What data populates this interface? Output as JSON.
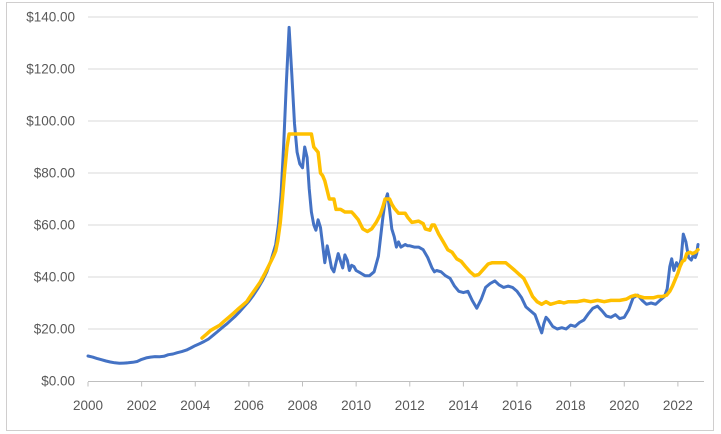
{
  "chart_data": {
    "type": "line",
    "title": "",
    "xlabel": "",
    "ylabel": "",
    "x_range": [
      2000,
      2022.75
    ],
    "ylim": [
      0,
      140
    ],
    "y_tick_step": 20,
    "x_tick_interval": 2,
    "grid": "horizontal-only",
    "legend_position": "none",
    "y_tick_labels": [
      "$0.00",
      "$20.00",
      "$40.00",
      "$60.00",
      "$80.00",
      "$100.00",
      "$120.00",
      "$140.00"
    ],
    "x_tick_labels": [
      "2000",
      "2002",
      "2004",
      "2006",
      "2008",
      "2010",
      "2012",
      "2014",
      "2016",
      "2018",
      "2020",
      "2022"
    ],
    "x_tick_years": [
      2000,
      2002,
      2004,
      2006,
      2008,
      2010,
      2012,
      2014,
      2016,
      2018,
      2020,
      2022
    ],
    "colors": {
      "series_blue": "#4472C4",
      "series_yellow": "#FFC000",
      "gridline": "#D9D9D9",
      "axis_line": "#BFBFBF",
      "tick": "#BFBFBF",
      "label_text": "#595959",
      "chart_border": "#D0CECE",
      "background": "#FFFFFF"
    },
    "series": [
      {
        "name": "blue-line-series",
        "color_key": "series_blue",
        "stroke_width": 3,
        "points": [
          [
            2000.0,
            9.6
          ],
          [
            2000.17,
            9.2
          ],
          [
            2000.33,
            8.7
          ],
          [
            2000.5,
            8.2
          ],
          [
            2000.67,
            7.7
          ],
          [
            2000.83,
            7.3
          ],
          [
            2001.0,
            7.0
          ],
          [
            2001.17,
            6.8
          ],
          [
            2001.33,
            6.9
          ],
          [
            2001.5,
            7.0
          ],
          [
            2001.67,
            7.2
          ],
          [
            2001.83,
            7.5
          ],
          [
            2002.0,
            8.3
          ],
          [
            2002.17,
            8.9
          ],
          [
            2002.33,
            9.2
          ],
          [
            2002.5,
            9.4
          ],
          [
            2002.67,
            9.3
          ],
          [
            2002.83,
            9.5
          ],
          [
            2003.0,
            10.1
          ],
          [
            2003.17,
            10.4
          ],
          [
            2003.33,
            10.9
          ],
          [
            2003.5,
            11.3
          ],
          [
            2003.67,
            11.9
          ],
          [
            2003.83,
            12.7
          ],
          [
            2004.0,
            13.6
          ],
          [
            2004.17,
            14.4
          ],
          [
            2004.33,
            15.2
          ],
          [
            2004.5,
            16.2
          ],
          [
            2004.67,
            17.6
          ],
          [
            2004.83,
            19.0
          ],
          [
            2005.0,
            20.5
          ],
          [
            2005.17,
            21.9
          ],
          [
            2005.33,
            23.4
          ],
          [
            2005.5,
            25.0
          ],
          [
            2005.67,
            26.8
          ],
          [
            2005.83,
            28.7
          ],
          [
            2006.0,
            30.7
          ],
          [
            2006.17,
            33.0
          ],
          [
            2006.33,
            35.5
          ],
          [
            2006.5,
            38.5
          ],
          [
            2006.67,
            42.0
          ],
          [
            2006.83,
            46.5
          ],
          [
            2007.0,
            52.5
          ],
          [
            2007.1,
            60.0
          ],
          [
            2007.2,
            72.0
          ],
          [
            2007.3,
            91.0
          ],
          [
            2007.4,
            115.0
          ],
          [
            2007.5,
            136.0
          ],
          [
            2007.6,
            118.0
          ],
          [
            2007.7,
            99.0
          ],
          [
            2007.8,
            88.0
          ],
          [
            2007.9,
            83.5
          ],
          [
            2008.0,
            82.0
          ],
          [
            2008.08,
            90.0
          ],
          [
            2008.17,
            86.0
          ],
          [
            2008.25,
            74.0
          ],
          [
            2008.33,
            65.0
          ],
          [
            2008.42,
            60.0
          ],
          [
            2008.5,
            58.0
          ],
          [
            2008.58,
            62.0
          ],
          [
            2008.67,
            59.0
          ],
          [
            2008.75,
            52.5
          ],
          [
            2008.83,
            45.5
          ],
          [
            2008.92,
            52.0
          ],
          [
            2009.0,
            48.0
          ],
          [
            2009.08,
            43.5
          ],
          [
            2009.17,
            42.0
          ],
          [
            2009.25,
            45.5
          ],
          [
            2009.33,
            49.0
          ],
          [
            2009.42,
            46.0
          ],
          [
            2009.5,
            43.5
          ],
          [
            2009.58,
            48.5
          ],
          [
            2009.67,
            46.5
          ],
          [
            2009.75,
            42.5
          ],
          [
            2009.83,
            44.5
          ],
          [
            2009.92,
            44.0
          ],
          [
            2010.0,
            42.5
          ],
          [
            2010.17,
            41.5
          ],
          [
            2010.33,
            40.5
          ],
          [
            2010.5,
            40.5
          ],
          [
            2010.67,
            42.0
          ],
          [
            2010.83,
            48.0
          ],
          [
            2010.92,
            56.0
          ],
          [
            2011.0,
            63.0
          ],
          [
            2011.08,
            69.0
          ],
          [
            2011.17,
            72.0
          ],
          [
            2011.25,
            66.0
          ],
          [
            2011.33,
            58.5
          ],
          [
            2011.42,
            55.5
          ],
          [
            2011.5,
            51.5
          ],
          [
            2011.58,
            53.5
          ],
          [
            2011.67,
            51.5
          ],
          [
            2011.75,
            52.0
          ],
          [
            2011.83,
            52.5
          ],
          [
            2011.92,
            52.0
          ],
          [
            2012.0,
            52.0
          ],
          [
            2012.17,
            51.5
          ],
          [
            2012.33,
            51.5
          ],
          [
            2012.5,
            50.5
          ],
          [
            2012.67,
            47.5
          ],
          [
            2012.83,
            43.5
          ],
          [
            2012.92,
            42.0
          ],
          [
            2013.0,
            42.5
          ],
          [
            2013.17,
            42.0
          ],
          [
            2013.33,
            40.5
          ],
          [
            2013.5,
            39.5
          ],
          [
            2013.67,
            36.5
          ],
          [
            2013.83,
            34.5
          ],
          [
            2014.0,
            34.0
          ],
          [
            2014.17,
            34.5
          ],
          [
            2014.33,
            31.0
          ],
          [
            2014.5,
            28.0
          ],
          [
            2014.67,
            31.5
          ],
          [
            2014.83,
            36.0
          ],
          [
            2015.0,
            37.5
          ],
          [
            2015.17,
            38.5
          ],
          [
            2015.33,
            37.0
          ],
          [
            2015.5,
            36.0
          ],
          [
            2015.67,
            36.5
          ],
          [
            2015.83,
            36.0
          ],
          [
            2016.0,
            34.5
          ],
          [
            2016.17,
            32.0
          ],
          [
            2016.33,
            28.5
          ],
          [
            2016.5,
            27.0
          ],
          [
            2016.67,
            25.5
          ],
          [
            2016.83,
            21.0
          ],
          [
            2016.92,
            18.5
          ],
          [
            2017.0,
            22.0
          ],
          [
            2017.08,
            24.5
          ],
          [
            2017.17,
            23.5
          ],
          [
            2017.33,
            21.0
          ],
          [
            2017.5,
            20.0
          ],
          [
            2017.67,
            20.5
          ],
          [
            2017.83,
            20.0
          ],
          [
            2018.0,
            21.5
          ],
          [
            2018.17,
            21.0
          ],
          [
            2018.33,
            22.5
          ],
          [
            2018.5,
            23.5
          ],
          [
            2018.67,
            26.0
          ],
          [
            2018.83,
            28.0
          ],
          [
            2019.0,
            28.8
          ],
          [
            2019.17,
            27.0
          ],
          [
            2019.33,
            25.0
          ],
          [
            2019.5,
            24.5
          ],
          [
            2019.67,
            25.5
          ],
          [
            2019.83,
            24.0
          ],
          [
            2020.0,
            24.5
          ],
          [
            2020.17,
            27.5
          ],
          [
            2020.33,
            32.0
          ],
          [
            2020.5,
            33.0
          ],
          [
            2020.67,
            31.0
          ],
          [
            2020.83,
            29.5
          ],
          [
            2021.0,
            30.0
          ],
          [
            2021.17,
            29.5
          ],
          [
            2021.33,
            31.0
          ],
          [
            2021.5,
            32.5
          ],
          [
            2021.6,
            35.5
          ],
          [
            2021.7,
            44.0
          ],
          [
            2021.77,
            47.0
          ],
          [
            2021.85,
            42.5
          ],
          [
            2021.95,
            45.5
          ],
          [
            2022.05,
            43.5
          ],
          [
            2022.12,
            47.0
          ],
          [
            2022.2,
            56.5
          ],
          [
            2022.3,
            53.5
          ],
          [
            2022.4,
            47.5
          ],
          [
            2022.5,
            46.5
          ],
          [
            2022.58,
            48.5
          ],
          [
            2022.65,
            47.5
          ],
          [
            2022.7,
            49.0
          ],
          [
            2022.75,
            52.5
          ]
        ]
      },
      {
        "name": "yellow-line-series",
        "color_key": "series_yellow",
        "stroke_width": 3.5,
        "points": [
          [
            2004.25,
            16.5
          ],
          [
            2004.42,
            18.0
          ],
          [
            2004.58,
            19.5
          ],
          [
            2004.75,
            20.5
          ],
          [
            2004.92,
            21.5
          ],
          [
            2005.08,
            23.0
          ],
          [
            2005.25,
            24.5
          ],
          [
            2005.42,
            26.0
          ],
          [
            2005.58,
            27.5
          ],
          [
            2005.75,
            29.0
          ],
          [
            2005.92,
            30.5
          ],
          [
            2006.08,
            33.0
          ],
          [
            2006.25,
            35.5
          ],
          [
            2006.42,
            38.0
          ],
          [
            2006.58,
            41.0
          ],
          [
            2006.75,
            44.5
          ],
          [
            2006.92,
            48.0
          ],
          [
            2007.0,
            50.0
          ],
          [
            2007.08,
            54.0
          ],
          [
            2007.17,
            61.0
          ],
          [
            2007.25,
            70.0
          ],
          [
            2007.33,
            80.0
          ],
          [
            2007.42,
            90.0
          ],
          [
            2007.5,
            95.0
          ],
          [
            2008.33,
            95.0
          ],
          [
            2008.42,
            90.0
          ],
          [
            2008.58,
            88.0
          ],
          [
            2008.67,
            80.0
          ],
          [
            2008.75,
            79.0
          ],
          [
            2008.83,
            77.0
          ],
          [
            2009.0,
            70.0
          ],
          [
            2009.17,
            70.0
          ],
          [
            2009.25,
            66.0
          ],
          [
            2009.42,
            66.0
          ],
          [
            2009.58,
            65.0
          ],
          [
            2009.83,
            65.0
          ],
          [
            2009.92,
            64.0
          ],
          [
            2010.08,
            62.0
          ],
          [
            2010.25,
            58.5
          ],
          [
            2010.42,
            57.5
          ],
          [
            2010.58,
            58.5
          ],
          [
            2010.75,
            61.0
          ],
          [
            2010.9,
            64.0
          ],
          [
            2011.0,
            67.0
          ],
          [
            2011.08,
            70.0
          ],
          [
            2011.25,
            70.0
          ],
          [
            2011.33,
            68.0
          ],
          [
            2011.42,
            66.5
          ],
          [
            2011.58,
            64.5
          ],
          [
            2011.83,
            64.5
          ],
          [
            2011.92,
            63.0
          ],
          [
            2012.08,
            61.0
          ],
          [
            2012.33,
            61.5
          ],
          [
            2012.5,
            60.5
          ],
          [
            2012.58,
            58.5
          ],
          [
            2012.75,
            58.0
          ],
          [
            2012.83,
            60.0
          ],
          [
            2012.92,
            60.0
          ],
          [
            2013.08,
            56.5
          ],
          [
            2013.25,
            53.5
          ],
          [
            2013.42,
            50.5
          ],
          [
            2013.58,
            49.5
          ],
          [
            2013.75,
            47.0
          ],
          [
            2013.92,
            46.0
          ],
          [
            2014.08,
            44.0
          ],
          [
            2014.25,
            42.0
          ],
          [
            2014.42,
            40.5
          ],
          [
            2014.58,
            41.0
          ],
          [
            2014.75,
            43.0
          ],
          [
            2014.92,
            45.0
          ],
          [
            2015.08,
            45.5
          ],
          [
            2015.58,
            45.5
          ],
          [
            2015.75,
            44.0
          ],
          [
            2015.92,
            42.5
          ],
          [
            2016.08,
            41.0
          ],
          [
            2016.25,
            39.5
          ],
          [
            2016.42,
            36.0
          ],
          [
            2016.58,
            32.5
          ],
          [
            2016.75,
            30.5
          ],
          [
            2016.92,
            29.5
          ],
          [
            2017.08,
            30.5
          ],
          [
            2017.25,
            29.5
          ],
          [
            2017.42,
            30.0
          ],
          [
            2017.58,
            30.5
          ],
          [
            2017.75,
            30.0
          ],
          [
            2017.92,
            30.5
          ],
          [
            2018.25,
            30.5
          ],
          [
            2018.5,
            31.0
          ],
          [
            2018.75,
            30.5
          ],
          [
            2019.0,
            31.0
          ],
          [
            2019.25,
            30.5
          ],
          [
            2019.5,
            31.0
          ],
          [
            2019.83,
            31.0
          ],
          [
            2020.08,
            31.5
          ],
          [
            2020.25,
            32.5
          ],
          [
            2020.42,
            33.0
          ],
          [
            2020.58,
            32.5
          ],
          [
            2020.75,
            32.0
          ],
          [
            2020.92,
            32.0
          ],
          [
            2021.08,
            32.0
          ],
          [
            2021.25,
            32.5
          ],
          [
            2021.42,
            32.5
          ],
          [
            2021.58,
            33.0
          ],
          [
            2021.7,
            34.5
          ],
          [
            2021.8,
            36.5
          ],
          [
            2021.9,
            39.0
          ],
          [
            2022.0,
            41.5
          ],
          [
            2022.08,
            44.0
          ],
          [
            2022.17,
            46.0
          ],
          [
            2022.25,
            46.5
          ],
          [
            2022.33,
            49.0
          ],
          [
            2022.45,
            49.5
          ],
          [
            2022.55,
            49.0
          ],
          [
            2022.65,
            49.5
          ],
          [
            2022.7,
            50.0
          ],
          [
            2022.75,
            50.5
          ]
        ]
      }
    ]
  }
}
